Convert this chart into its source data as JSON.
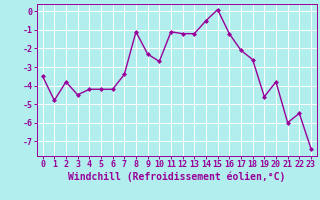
{
  "x": [
    0,
    1,
    2,
    3,
    4,
    5,
    6,
    7,
    8,
    9,
    10,
    11,
    12,
    13,
    14,
    15,
    16,
    17,
    18,
    19,
    20,
    21,
    22,
    23
  ],
  "y": [
    -3.5,
    -4.8,
    -3.8,
    -4.5,
    -4.2,
    -4.2,
    -4.2,
    -3.4,
    -1.1,
    -2.3,
    -2.7,
    -1.1,
    -1.2,
    -1.2,
    -0.5,
    0.1,
    -1.2,
    -2.1,
    -2.6,
    -4.6,
    -3.8,
    -6.0,
    -5.5,
    -7.4
  ],
  "line_color": "#990099",
  "marker": "D",
  "marker_size": 2.0,
  "line_width": 1.0,
  "bg_color": "#b2eeee",
  "grid_color": "#ffffff",
  "xlabel": "Windchill (Refroidissement éolien,°C)",
  "xlabel_color": "#990099",
  "xlabel_fontsize": 7.0,
  "tick_color": "#990099",
  "tick_fontsize": 6.0,
  "ylim": [
    -7.8,
    0.4
  ],
  "xlim": [
    -0.5,
    23.5
  ],
  "yticks": [
    0,
    -1,
    -2,
    -3,
    -4,
    -5,
    -6,
    -7
  ],
  "xticks": [
    0,
    1,
    2,
    3,
    4,
    5,
    6,
    7,
    8,
    9,
    10,
    11,
    12,
    13,
    14,
    15,
    16,
    17,
    18,
    19,
    20,
    21,
    22,
    23
  ]
}
